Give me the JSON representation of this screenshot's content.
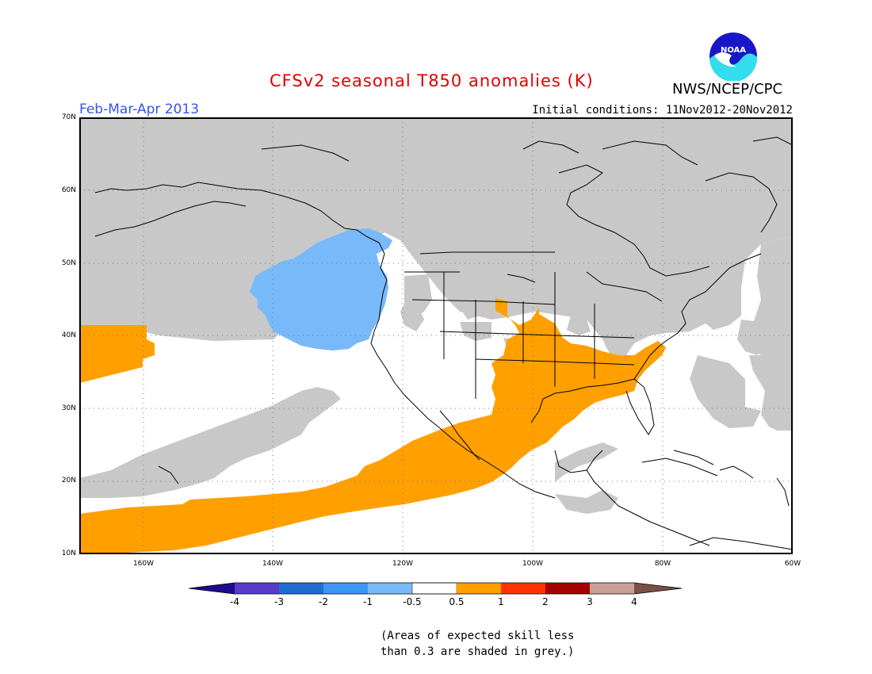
{
  "header": {
    "title": "CFSv2 seasonal T850 anomalies (K)",
    "agency": "NWS/NCEP/CPC",
    "logo_text": "NOAA",
    "period": "Feb-Mar-Apr 2013",
    "initial_conditions": "Initial conditions: 11Nov2012-20Nov2012"
  },
  "map": {
    "lat_labels": [
      "70N",
      "60N",
      "50N",
      "40N",
      "30N",
      "20N",
      "10N"
    ],
    "lon_labels": [
      "160W",
      "140W",
      "120W",
      "100W",
      "80W",
      "60W"
    ],
    "extent": {
      "lon_min": -172,
      "lon_max": -60,
      "lat_min": 10,
      "lat_max": 70
    },
    "colors": {
      "low_skill_grey": "#c8c8c8",
      "neutral": "#ffffff",
      "anomaly_pos_0_5_to_1": "#ffa000",
      "anomaly_neg_0_5_to_1": "#78b9fa",
      "coastline": "#000000"
    }
  },
  "colorbar": {
    "labels": [
      "-4",
      "-3",
      "-2",
      "-1",
      "-0.5",
      "0.5",
      "1",
      "2",
      "3",
      "4"
    ],
    "colors": [
      "#1e0a8c",
      "#5a3cc8",
      "#1e6ed2",
      "#3c96f5",
      "#78b9fa",
      "#ffffff",
      "#ffa000",
      "#ff3200",
      "#a50000",
      "#c8a096",
      "#785046"
    ]
  },
  "footnote": {
    "line1": "(Areas of expected skill less",
    "line2": "than 0.3 are shaded in grey.)"
  }
}
